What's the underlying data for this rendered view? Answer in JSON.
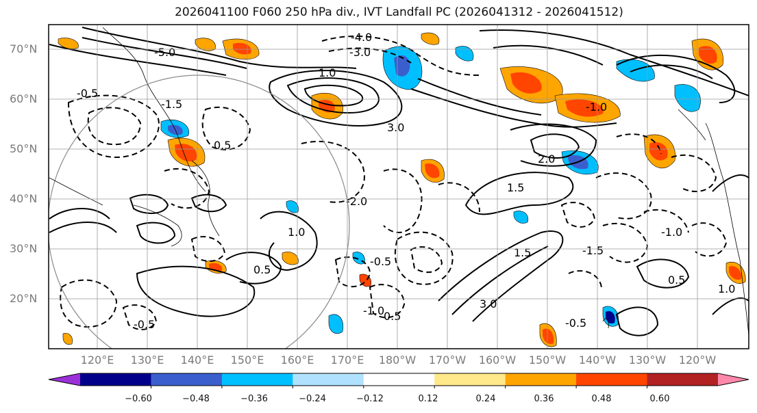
{
  "title": "2026041100 F060 250 hPa div., IVT Landfall PC (2026041312 - 2026041512)",
  "map": {
    "lat_labels": [
      "70°N",
      "60°N",
      "50°N",
      "40°N",
      "30°N",
      "20°N"
    ],
    "lon_labels": [
      "120°E",
      "130°E",
      "140°E",
      "150°E",
      "160°E",
      "170°E",
      "180°W",
      "170°W",
      "160°W",
      "150°W",
      "140°W",
      "130°W",
      "120°W"
    ],
    "contour_labels": [
      "-4.0",
      "-3.0",
      "-5.0",
      "-1.5",
      "1.0",
      "3.0",
      "-0.5",
      "0.5",
      "-1.0",
      "1.5",
      "-2.0",
      "2.0",
      "-0.5",
      "0.5",
      "-1.0",
      "1.0",
      "3.0",
      "-1.5",
      "1.5",
      "0.5",
      "-0.5",
      "-1.0",
      "1.0",
      "0.5",
      "-0.5"
    ]
  },
  "colorbar": {
    "ticks": [
      "−0.60",
      "−0.48",
      "−0.36",
      "−0.24",
      "−0.12",
      "0.12",
      "0.24",
      "0.36",
      "0.48",
      "0.60"
    ],
    "colors": [
      "#9b30d9",
      "#00008b",
      "#3a5fcd",
      "#00bfff",
      "#b0e2ff",
      "#ffffff",
      "#ffe88a",
      "#ffa500",
      "#ff4500",
      "#b22222",
      "#ff88aa"
    ]
  }
}
